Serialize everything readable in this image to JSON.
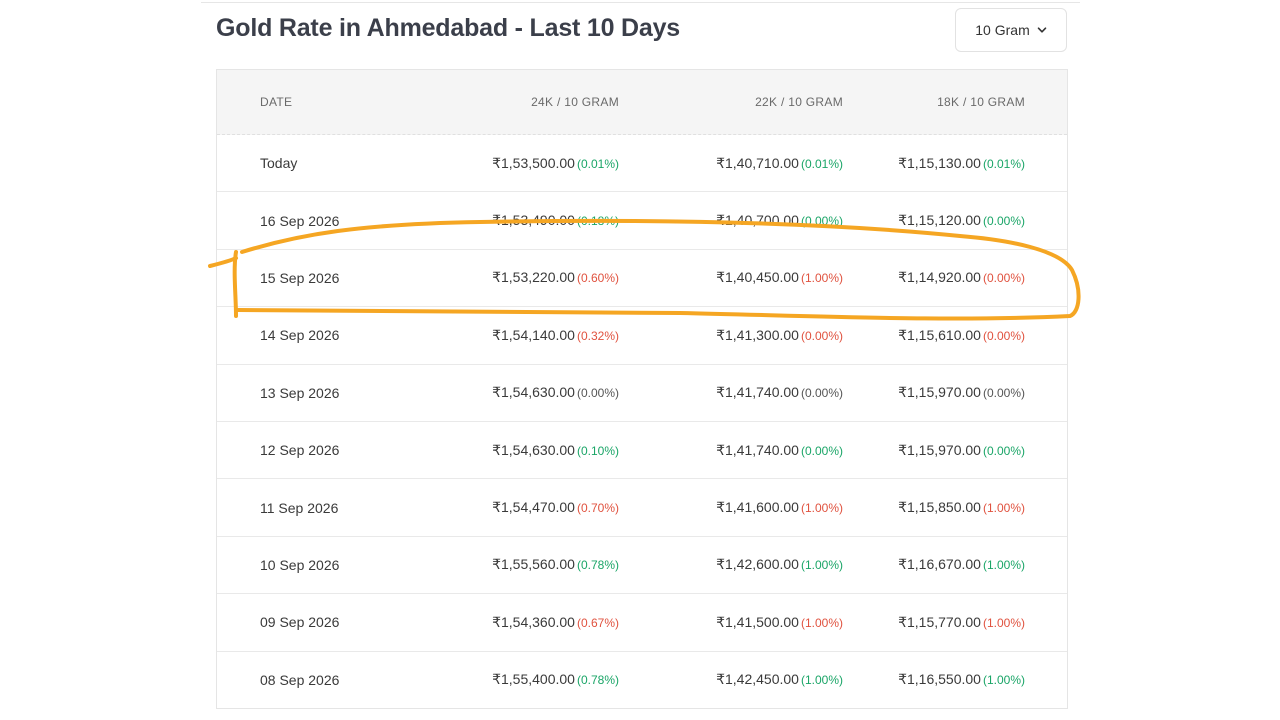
{
  "title": "Gold Rate in Ahmedabad - Last 10 Days",
  "unit_select": {
    "value": "10 Gram"
  },
  "table": {
    "headers": {
      "date": "DATE",
      "k24": "24K / 10 GRAM",
      "k22": "22K / 10 GRAM",
      "k18": "18K / 10 GRAM"
    },
    "rows": [
      {
        "date": "Today",
        "k24": "₹1,53,500.00",
        "k24_chg": "(0.01%)",
        "k24_dir": "up",
        "k22": "₹1,40,710.00",
        "k22_chg": "(0.01%)",
        "k22_dir": "up",
        "k18": "₹1,15,130.00",
        "k18_chg": "(0.01%)",
        "k18_dir": "up"
      },
      {
        "date": "16 Sep 2026",
        "k24": "₹1,53,490.00",
        "k24_chg": "(0.18%)",
        "k24_dir": "up",
        "k22": "₹1,40,700.00",
        "k22_chg": "(0.00%)",
        "k22_dir": "up",
        "k18": "₹1,15,120.00",
        "k18_chg": "(0.00%)",
        "k18_dir": "up"
      },
      {
        "date": "15 Sep 2026",
        "k24": "₹1,53,220.00",
        "k24_chg": "(0.60%)",
        "k24_dir": "down",
        "k22": "₹1,40,450.00",
        "k22_chg": "(1.00%)",
        "k22_dir": "down",
        "k18": "₹1,14,920.00",
        "k18_chg": "(0.00%)",
        "k18_dir": "down"
      },
      {
        "date": "14 Sep 2026",
        "k24": "₹1,54,140.00",
        "k24_chg": "(0.32%)",
        "k24_dir": "down",
        "k22": "₹1,41,300.00",
        "k22_chg": "(0.00%)",
        "k22_dir": "down",
        "k18": "₹1,15,610.00",
        "k18_chg": "(0.00%)",
        "k18_dir": "down"
      },
      {
        "date": "13 Sep 2026",
        "k24": "₹1,54,630.00",
        "k24_chg": "(0.00%)",
        "k24_dir": "flat",
        "k22": "₹1,41,740.00",
        "k22_chg": "(0.00%)",
        "k22_dir": "flat",
        "k18": "₹1,15,970.00",
        "k18_chg": "(0.00%)",
        "k18_dir": "flat"
      },
      {
        "date": "12 Sep 2026",
        "k24": "₹1,54,630.00",
        "k24_chg": "(0.10%)",
        "k24_dir": "up",
        "k22": "₹1,41,740.00",
        "k22_chg": "(0.00%)",
        "k22_dir": "up",
        "k18": "₹1,15,970.00",
        "k18_chg": "(0.00%)",
        "k18_dir": "up"
      },
      {
        "date": "11 Sep 2026",
        "k24": "₹1,54,470.00",
        "k24_chg": "(0.70%)",
        "k24_dir": "down",
        "k22": "₹1,41,600.00",
        "k22_chg": "(1.00%)",
        "k22_dir": "down",
        "k18": "₹1,15,850.00",
        "k18_chg": "(1.00%)",
        "k18_dir": "down"
      },
      {
        "date": "10 Sep 2026",
        "k24": "₹1,55,560.00",
        "k24_chg": "(0.78%)",
        "k24_dir": "up",
        "k22": "₹1,42,600.00",
        "k22_chg": "(1.00%)",
        "k22_dir": "up",
        "k18": "₹1,16,670.00",
        "k18_chg": "(1.00%)",
        "k18_dir": "up"
      },
      {
        "date": "09 Sep 2026",
        "k24": "₹1,54,360.00",
        "k24_chg": "(0.67%)",
        "k24_dir": "down",
        "k22": "₹1,41,500.00",
        "k22_chg": "(1.00%)",
        "k22_dir": "down",
        "k18": "₹1,15,770.00",
        "k18_chg": "(1.00%)",
        "k18_dir": "down"
      },
      {
        "date": "08 Sep 2026",
        "k24": "₹1,55,400.00",
        "k24_chg": "(0.78%)",
        "k24_dir": "up",
        "k22": "₹1,42,450.00",
        "k22_chg": "(1.00%)",
        "k22_dir": "up",
        "k18": "₹1,16,550.00",
        "k18_chg": "(1.00%)",
        "k18_dir": "up"
      }
    ]
  },
  "colors": {
    "up": "#1aa567",
    "down": "#e0523f",
    "annotation": "#f5a623"
  },
  "icons": {
    "unit_select_chevron": "chevron-down-icon"
  }
}
